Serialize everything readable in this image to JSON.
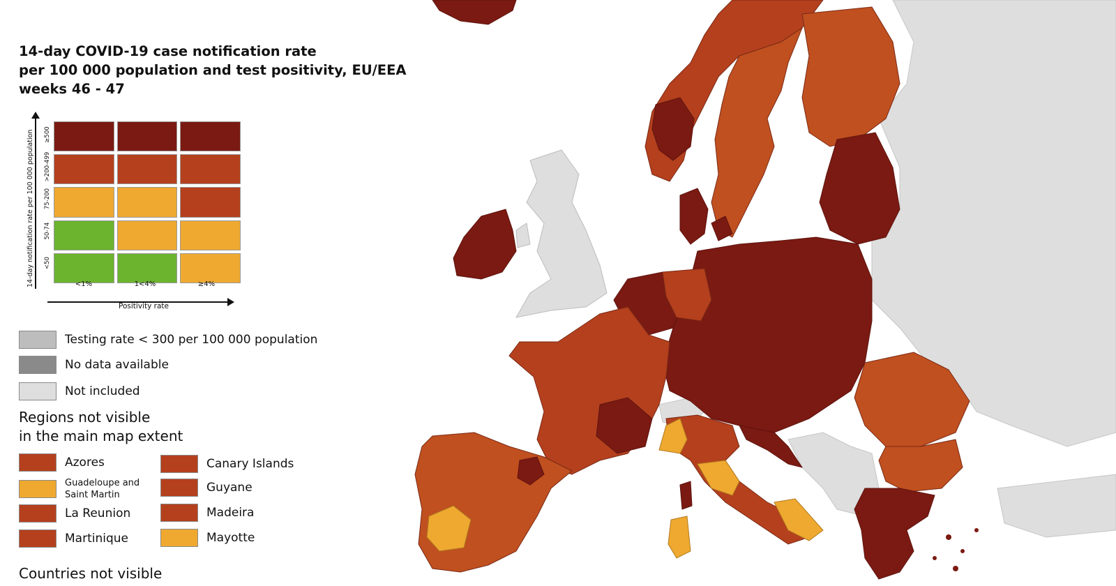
{
  "title": {
    "line1": "14-day COVID-19 case notification rate",
    "line2": "per 100 000 population and test positivity, EU/EEA",
    "line3": "weeks 46 - 47"
  },
  "colors": {
    "dark_red": "#7b1a12",
    "red": "#b5401d",
    "orange_red": "#c0501f",
    "orange": "#efa930",
    "green": "#6cb32e",
    "gray_testing": "#bdbdbd",
    "gray_nodata": "#8a8a8a",
    "gray_notincluded": "#dedede",
    "sea": "#ffffff",
    "border": "#7a7a7a"
  },
  "matrix": {
    "y_axis_label": "14-day notification rate per 100 000 population",
    "y_ticks": [
      "≥500",
      ">200-499",
      "75-200",
      "50-74",
      "<50"
    ],
    "x_axis_label": "Positivity rate",
    "x_ticks": [
      "<1%",
      "1<4%",
      "≥4%"
    ],
    "cells": [
      [
        "dark_red",
        "dark_red",
        "dark_red"
      ],
      [
        "red",
        "red",
        "red"
      ],
      [
        "orange",
        "orange",
        "red"
      ],
      [
        "green",
        "orange",
        "orange"
      ],
      [
        "green",
        "green",
        "orange"
      ]
    ]
  },
  "legend_other": [
    {
      "label": "Testing rate < 300 per 100 000 population",
      "color": "gray_testing"
    },
    {
      "label": "No data available",
      "color": "gray_nodata"
    },
    {
      "label": "Not included",
      "color": "gray_notincluded"
    }
  ],
  "regions_title": {
    "line1": "Regions not visible",
    "line2": "in the main map extent"
  },
  "regions_left": [
    {
      "label": "Azores",
      "color": "red"
    },
    {
      "label": "Guadeloupe and Saint Martin",
      "color": "orange"
    },
    {
      "label": "La Reunion",
      "color": "red"
    },
    {
      "label": "Martinique",
      "color": "red"
    }
  ],
  "regions_right": [
    {
      "label": "Canary Islands",
      "color": "red"
    },
    {
      "label": "Guyane",
      "color": "red"
    },
    {
      "label": "Madeira",
      "color": "red"
    },
    {
      "label": "Mayotte",
      "color": "orange"
    }
  ],
  "countries_title": "Countries not visible"
}
